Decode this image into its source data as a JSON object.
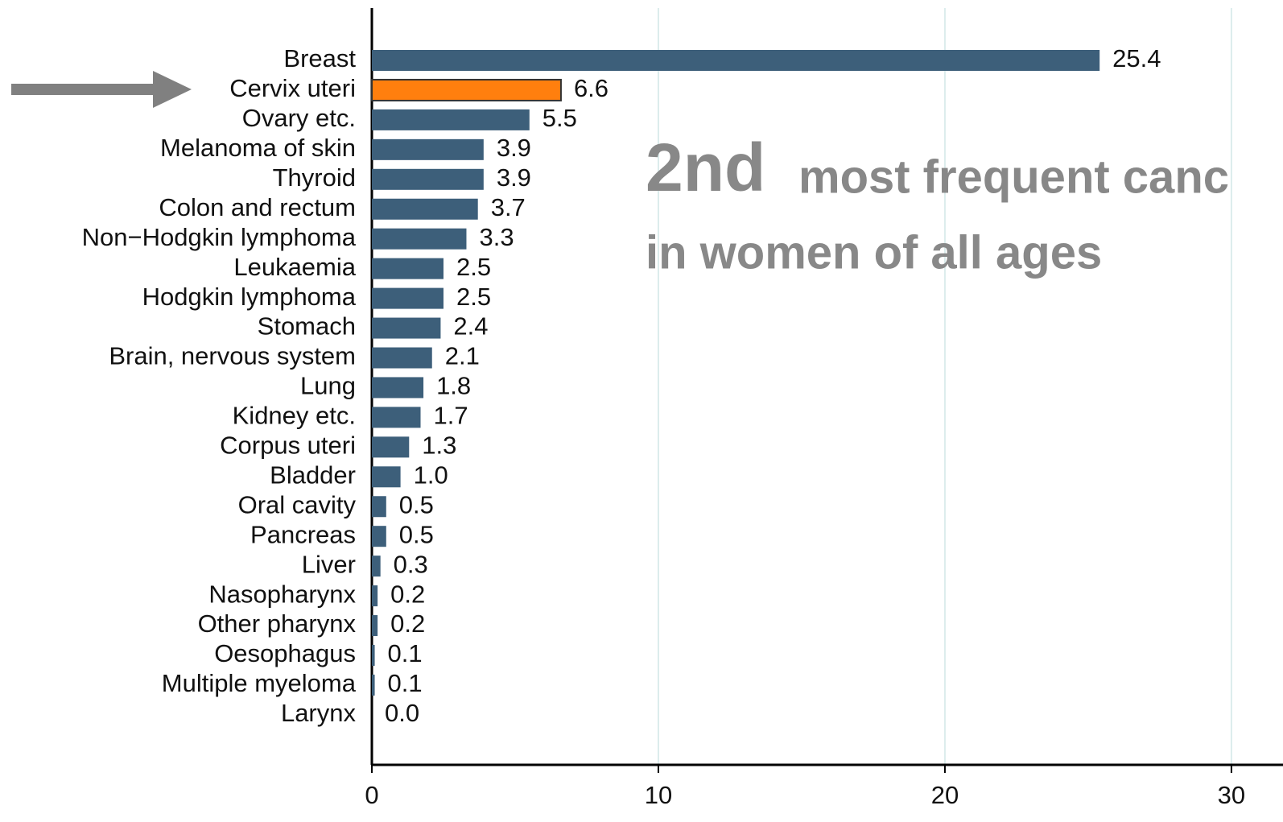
{
  "chart_data": {
    "type": "hbar",
    "categories": [
      "Breast",
      "Cervix uteri",
      "Ovary etc.",
      "Melanoma of skin",
      "Thyroid",
      "Colon and rectum",
      "Non−Hodgkin lymphoma",
      "Leukaemia",
      "Hodgkin lymphoma",
      "Stomach",
      "Brain, nervous system",
      "Lung",
      "Kidney etc.",
      "Corpus uteri",
      "Bladder",
      "Oral cavity",
      "Pancreas",
      "Liver",
      "Nasopharynx",
      "Other pharynx",
      "Oesophagus",
      "Multiple myeloma",
      "Larynx"
    ],
    "values": [
      25.4,
      6.6,
      5.5,
      3.9,
      3.9,
      3.7,
      3.3,
      2.5,
      2.5,
      2.4,
      2.1,
      1.8,
      1.7,
      1.3,
      1.0,
      0.5,
      0.5,
      0.3,
      0.2,
      0.2,
      0.1,
      0.1,
      0.0
    ],
    "value_labels": [
      "25.4",
      "6.6",
      "5.5",
      "3.9",
      "3.9",
      "3.7",
      "3.3",
      "2.5",
      "2.5",
      "2.4",
      "2.1",
      "1.8",
      "1.7",
      "1.3",
      "1.0",
      "0.5",
      "0.5",
      "0.3",
      "0.2",
      "0.2",
      "0.1",
      "0.1",
      "0.0"
    ],
    "colors": [
      "#3d5f7a",
      "#ff7f0e",
      "#3d5f7a",
      "#3d5f7a",
      "#3d5f7a",
      "#3d5f7a",
      "#3d5f7a",
      "#3d5f7a",
      "#3d5f7a",
      "#3d5f7a",
      "#3d5f7a",
      "#3d5f7a",
      "#3d5f7a",
      "#3d5f7a",
      "#3d5f7a",
      "#3d5f7a",
      "#3d5f7a",
      "#3d5f7a",
      "#3d5f7a",
      "#3d5f7a",
      "#3d5f7a",
      "#3d5f7a",
      "#3d5f7a"
    ],
    "xlim": [
      0,
      31.8
    ],
    "xticks": [
      0,
      10,
      20,
      30
    ],
    "grid": true,
    "annotations": [
      "2nd",
      "most frequent canc",
      "in women of all ages"
    ]
  }
}
